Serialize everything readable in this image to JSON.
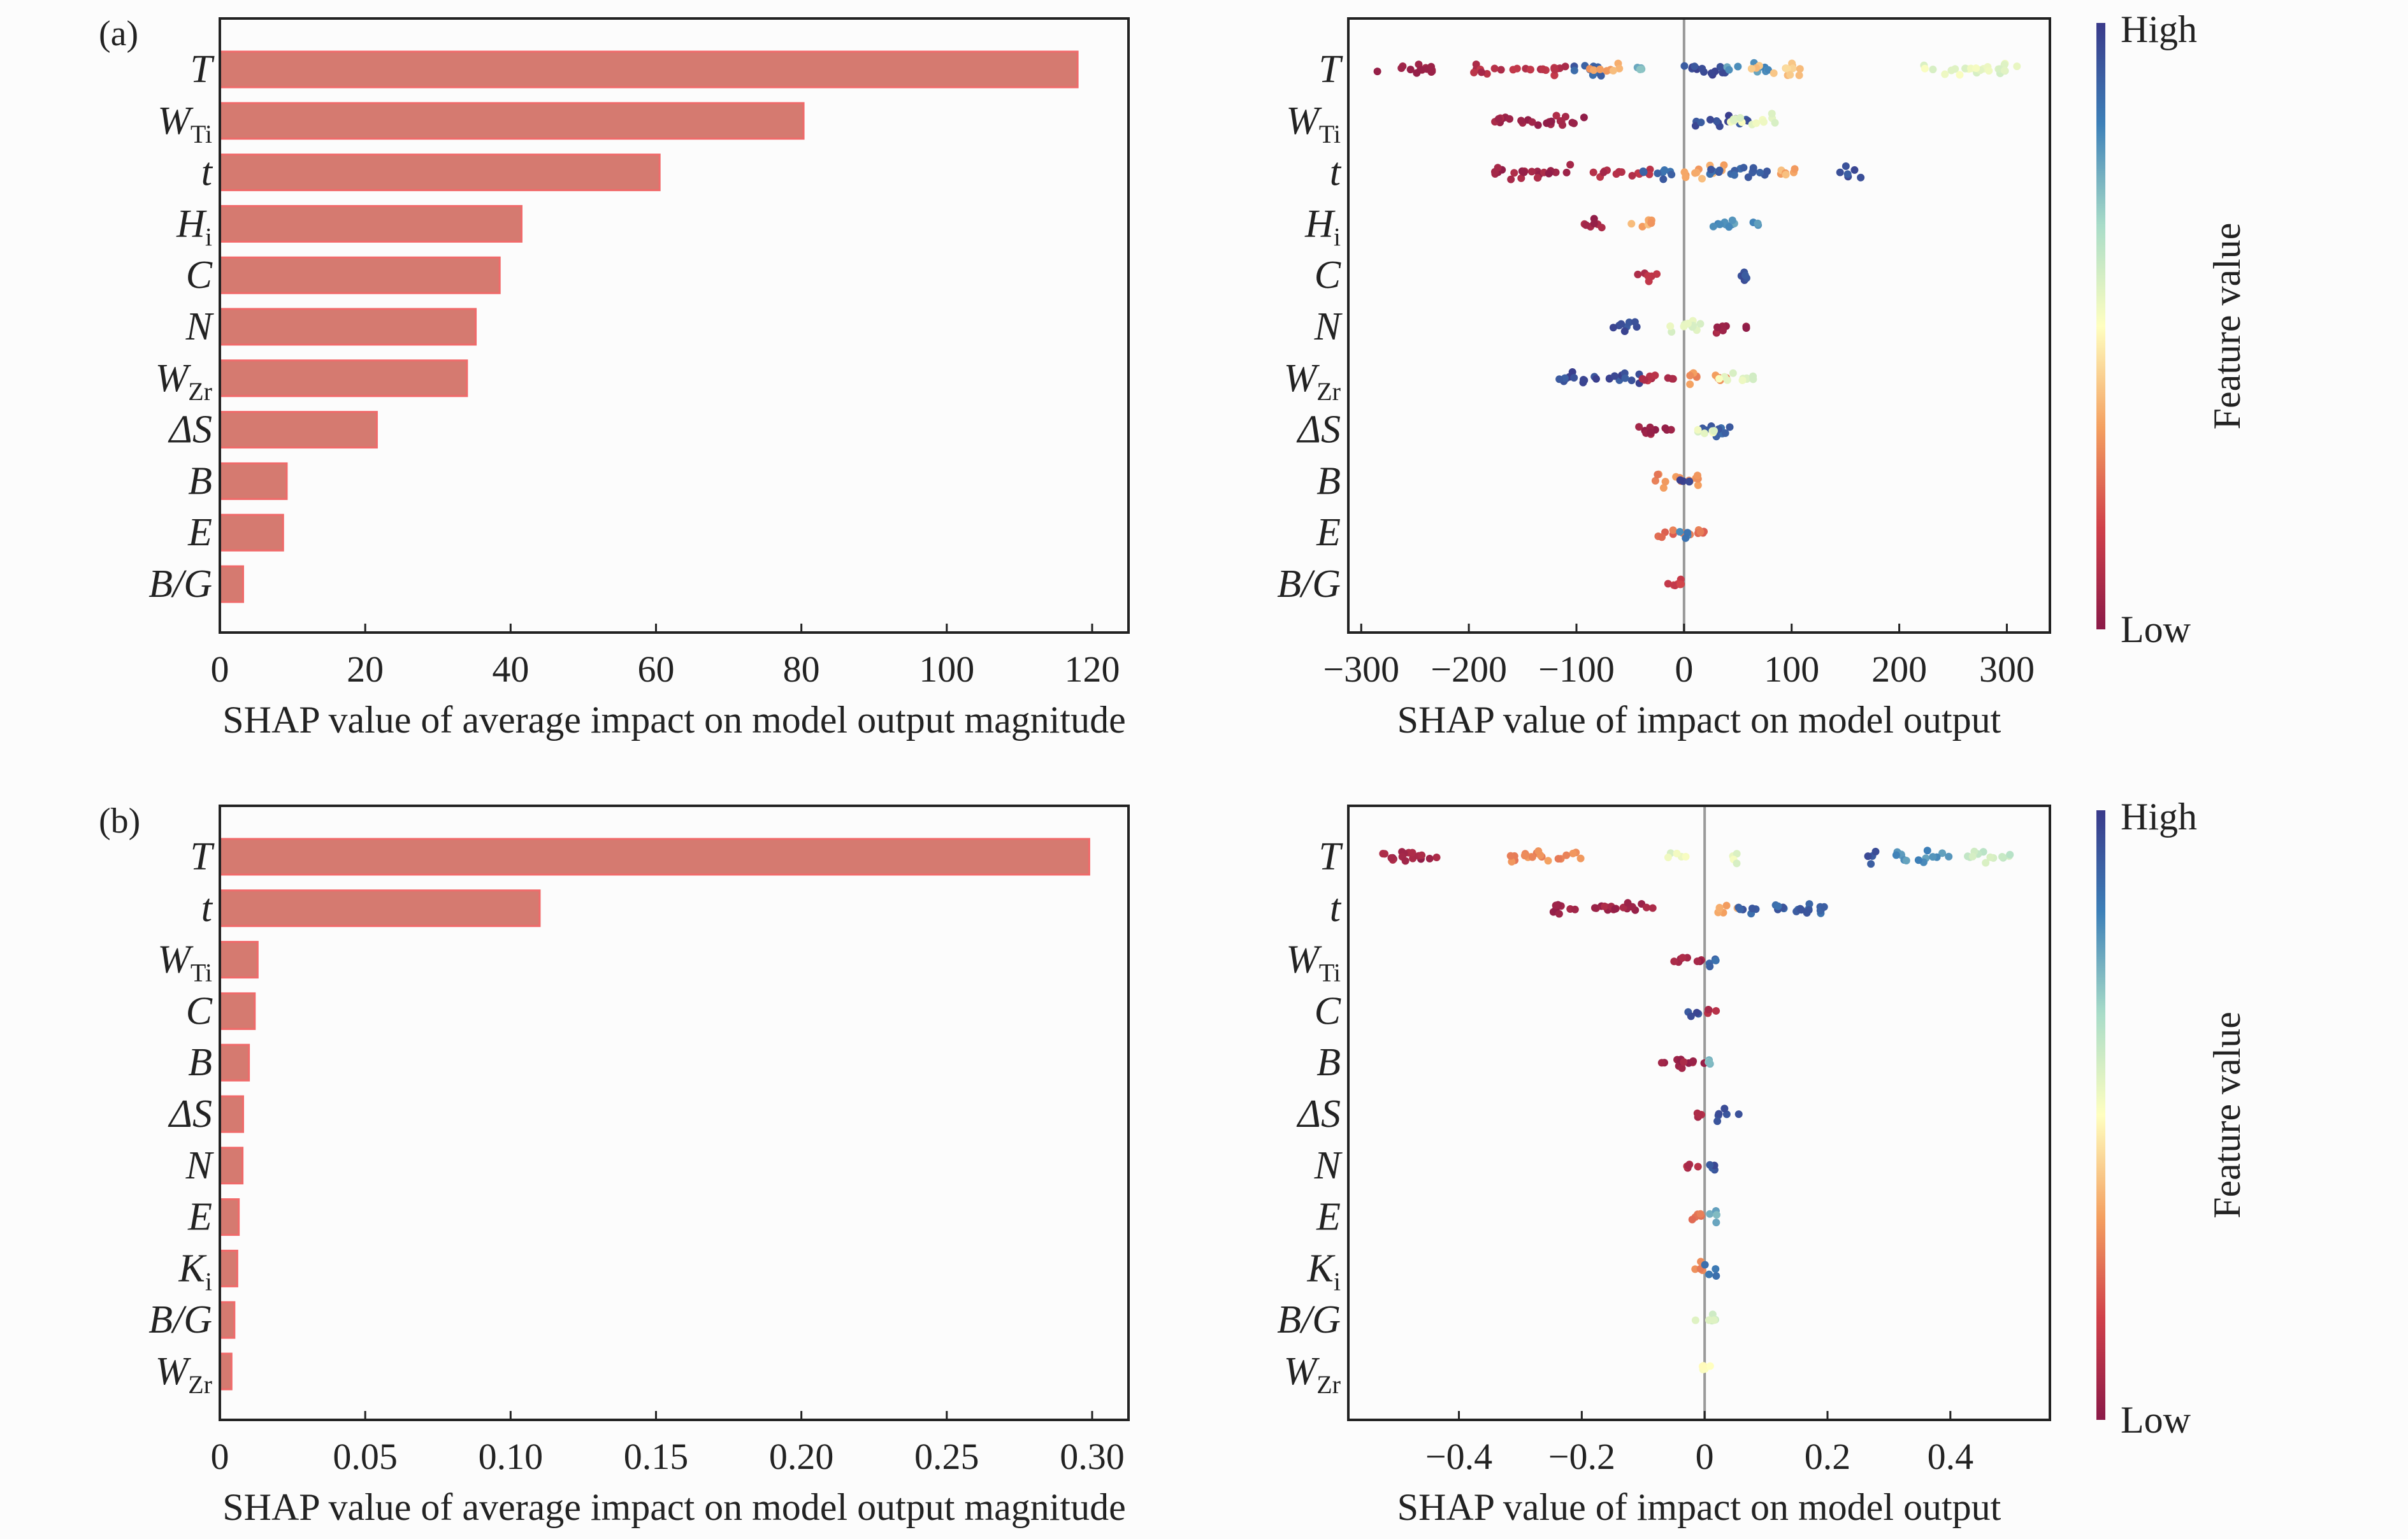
{
  "colors": {
    "bar": "#d57a70",
    "bar_edge": "#f06a6a",
    "zero_line": "#999999",
    "colormap": [
      "#8b1a48",
      "#d0404a",
      "#f4a060",
      "#ffffc0",
      "#a8dcc8",
      "#3d80b8",
      "#3a3a8a"
    ]
  },
  "chart_data": [
    {
      "panel": "(a)",
      "type": "bar",
      "orientation": "horizontal",
      "xlabel": "SHAP value of average impact on model output magnitude",
      "xlim": [
        0,
        125
      ],
      "xticks": [
        0,
        20,
        40,
        60,
        80,
        100,
        120
      ],
      "xtick_labels": [
        "0",
        "20",
        "40",
        "60",
        "80",
        "100",
        "120"
      ],
      "categories": [
        {
          "main": "T",
          "sub": ""
        },
        {
          "main": "W",
          "sub": "Ti"
        },
        {
          "main": "t",
          "sub": ""
        },
        {
          "main": "H",
          "sub": "i"
        },
        {
          "main": "C",
          "sub": ""
        },
        {
          "main": "N",
          "sub": ""
        },
        {
          "main": "W",
          "sub": "Zr"
        },
        {
          "main": "ΔS",
          "sub": ""
        },
        {
          "main": "B",
          "sub": ""
        },
        {
          "main": "E",
          "sub": ""
        },
        {
          "main": "B/G",
          "sub": ""
        }
      ],
      "values": [
        118,
        80.3,
        60.5,
        41.5,
        38.5,
        35.2,
        34,
        21.6,
        9.2,
        8.7,
        3.2
      ]
    },
    {
      "type": "scatter",
      "subtype": "beeswarm",
      "xlabel": "SHAP value of impact on model output",
      "xlim": [
        -312,
        340
      ],
      "xticks": [
        -300,
        -200,
        -100,
        0,
        100,
        200,
        300
      ],
      "xtick_labels": [
        "−300",
        "−200",
        "−100",
        "0",
        "100",
        "200",
        "300"
      ],
      "categories": [
        {
          "main": "T",
          "sub": ""
        },
        {
          "main": "W",
          "sub": "Ti"
        },
        {
          "main": "t",
          "sub": ""
        },
        {
          "main": "H",
          "sub": "i"
        },
        {
          "main": "C",
          "sub": ""
        },
        {
          "main": "N",
          "sub": ""
        },
        {
          "main": "W",
          "sub": "Zr"
        },
        {
          "main": "ΔS",
          "sub": ""
        },
        {
          "main": "B",
          "sub": ""
        },
        {
          "main": "E",
          "sub": ""
        },
        {
          "main": "B/G",
          "sub": ""
        }
      ],
      "clusters_note_fields": [
        "shap_min",
        "shap_max",
        "feature_value_level"
      ],
      "clusters": [
        [
          [
            -285,
            -230,
            0.05
          ],
          [
            -200,
            -110,
            0.1
          ],
          [
            -110,
            -70,
            0.9
          ],
          [
            -90,
            -60,
            0.35
          ],
          [
            -45,
            -35,
            0.75
          ],
          [
            -10,
            40,
            0.95
          ],
          [
            40,
            80,
            0.8
          ],
          [
            60,
            110,
            0.4
          ],
          [
            220,
            310,
            0.55
          ]
        ],
        [
          [
            -180,
            -90,
            0.05
          ],
          [
            10,
            60,
            0.95
          ],
          [
            40,
            90,
            0.55
          ]
        ],
        [
          [
            -180,
            -100,
            0.05
          ],
          [
            -85,
            -30,
            0.1
          ],
          [
            -40,
            -10,
            0.9
          ],
          [
            0,
            40,
            0.35
          ],
          [
            20,
            80,
            0.9
          ],
          [
            90,
            110,
            0.35
          ],
          [
            145,
            165,
            0.95
          ]
        ],
        [
          [
            -95,
            -70,
            0.05
          ],
          [
            -50,
            -30,
            0.35
          ],
          [
            20,
            70,
            0.8
          ]
        ],
        [
          [
            -45,
            -25,
            0.1
          ],
          [
            40,
            60,
            0.95
          ]
        ],
        [
          [
            -70,
            -40,
            0.95
          ],
          [
            -20,
            20,
            0.55
          ],
          [
            30,
            60,
            0.05
          ]
        ],
        [
          [
            -120,
            -40,
            0.95
          ],
          [
            -40,
            0,
            0.1
          ],
          [
            0,
            40,
            0.3
          ],
          [
            30,
            65,
            0.55
          ]
        ],
        [
          [
            -45,
            -10,
            0.05
          ],
          [
            10,
            50,
            0.9
          ],
          [
            10,
            30,
            0.55
          ]
        ],
        [
          [
            -30,
            20,
            0.3
          ],
          [
            -5,
            5,
            0.95
          ]
        ],
        [
          [
            -25,
            20,
            0.25
          ],
          [
            -5,
            5,
            0.85
          ]
        ],
        [
          [
            -15,
            10,
            0.15
          ]
        ]
      ],
      "colorbar": {
        "label": "Feature value",
        "high": "High",
        "low": "Low"
      }
    },
    {
      "panel": "(b)",
      "type": "bar",
      "orientation": "horizontal",
      "xlabel": "SHAP value of average impact on model output magnitude",
      "xlim": [
        0,
        0.3125
      ],
      "xticks": [
        0,
        0.05,
        0.1,
        0.15,
        0.2,
        0.25,
        0.3
      ],
      "xtick_labels": [
        "0",
        "0.05",
        "0.10",
        "0.15",
        "0.20",
        "0.25",
        "0.30"
      ],
      "categories": [
        {
          "main": "T",
          "sub": ""
        },
        {
          "main": "t",
          "sub": ""
        },
        {
          "main": "W",
          "sub": "Ti"
        },
        {
          "main": "C",
          "sub": ""
        },
        {
          "main": "B",
          "sub": ""
        },
        {
          "main": "ΔS",
          "sub": ""
        },
        {
          "main": "N",
          "sub": ""
        },
        {
          "main": "E",
          "sub": ""
        },
        {
          "main": "K",
          "sub": "i"
        },
        {
          "main": "B/G",
          "sub": ""
        },
        {
          "main": "W",
          "sub": "Zr"
        }
      ],
      "values": [
        0.299,
        0.11,
        0.013,
        0.012,
        0.01,
        0.008,
        0.0078,
        0.0065,
        0.006,
        0.005,
        0.004
      ]
    },
    {
      "type": "scatter",
      "subtype": "beeswarm",
      "xlabel": "SHAP value of impact on model output",
      "xlim": [
        -0.58,
        0.562
      ],
      "xticks": [
        -0.4,
        -0.2,
        0,
        0.2,
        0.4
      ],
      "xtick_labels": [
        "−0.4",
        "−0.2",
        "0",
        "0.2",
        "0.4"
      ],
      "categories": [
        {
          "main": "T",
          "sub": ""
        },
        {
          "main": "t",
          "sub": ""
        },
        {
          "main": "W",
          "sub": "Ti"
        },
        {
          "main": "C",
          "sub": ""
        },
        {
          "main": "B",
          "sub": ""
        },
        {
          "main": "ΔS",
          "sub": ""
        },
        {
          "main": "N",
          "sub": ""
        },
        {
          "main": "E",
          "sub": ""
        },
        {
          "main": "K",
          "sub": "i"
        },
        {
          "main": "B/G",
          "sub": ""
        },
        {
          "main": "W",
          "sub": "Zr"
        }
      ],
      "clusters": [
        [
          [
            -0.54,
            -0.43,
            0.05
          ],
          [
            -0.33,
            -0.2,
            0.3
          ],
          [
            -0.06,
            -0.03,
            0.55
          ],
          [
            0.04,
            0.06,
            0.55
          ],
          [
            0.26,
            0.28,
            0.95
          ],
          [
            0.31,
            0.4,
            0.8
          ],
          [
            0.42,
            0.5,
            0.6
          ]
        ],
        [
          [
            -0.25,
            -0.08,
            0.05
          ],
          [
            0.02,
            0.06,
            0.35
          ],
          [
            0.05,
            0.2,
            0.9
          ]
        ],
        [
          [
            -0.05,
            0.0,
            0.05
          ],
          [
            0.0,
            0.02,
            0.9
          ]
        ],
        [
          [
            -0.03,
            -0.01,
            0.95
          ],
          [
            0.0,
            0.02,
            0.1
          ]
        ],
        [
          [
            -0.08,
            0.0,
            0.05
          ],
          [
            0.0,
            0.02,
            0.7
          ]
        ],
        [
          [
            -0.02,
            0.0,
            0.1
          ],
          [
            0.02,
            0.06,
            0.95
          ]
        ],
        [
          [
            -0.03,
            0.0,
            0.1
          ],
          [
            0.0,
            0.02,
            0.95
          ]
        ],
        [
          [
            -0.03,
            0.0,
            0.25
          ],
          [
            0.0,
            0.02,
            0.75
          ]
        ],
        [
          [
            -0.02,
            0.0,
            0.3
          ],
          [
            0.0,
            0.02,
            0.85
          ]
        ],
        [
          [
            -0.02,
            0.02,
            0.6
          ]
        ],
        [
          [
            -0.02,
            0.01,
            0.5
          ]
        ]
      ],
      "colorbar": {
        "label": "Feature value",
        "high": "High",
        "low": "Low"
      }
    }
  ]
}
